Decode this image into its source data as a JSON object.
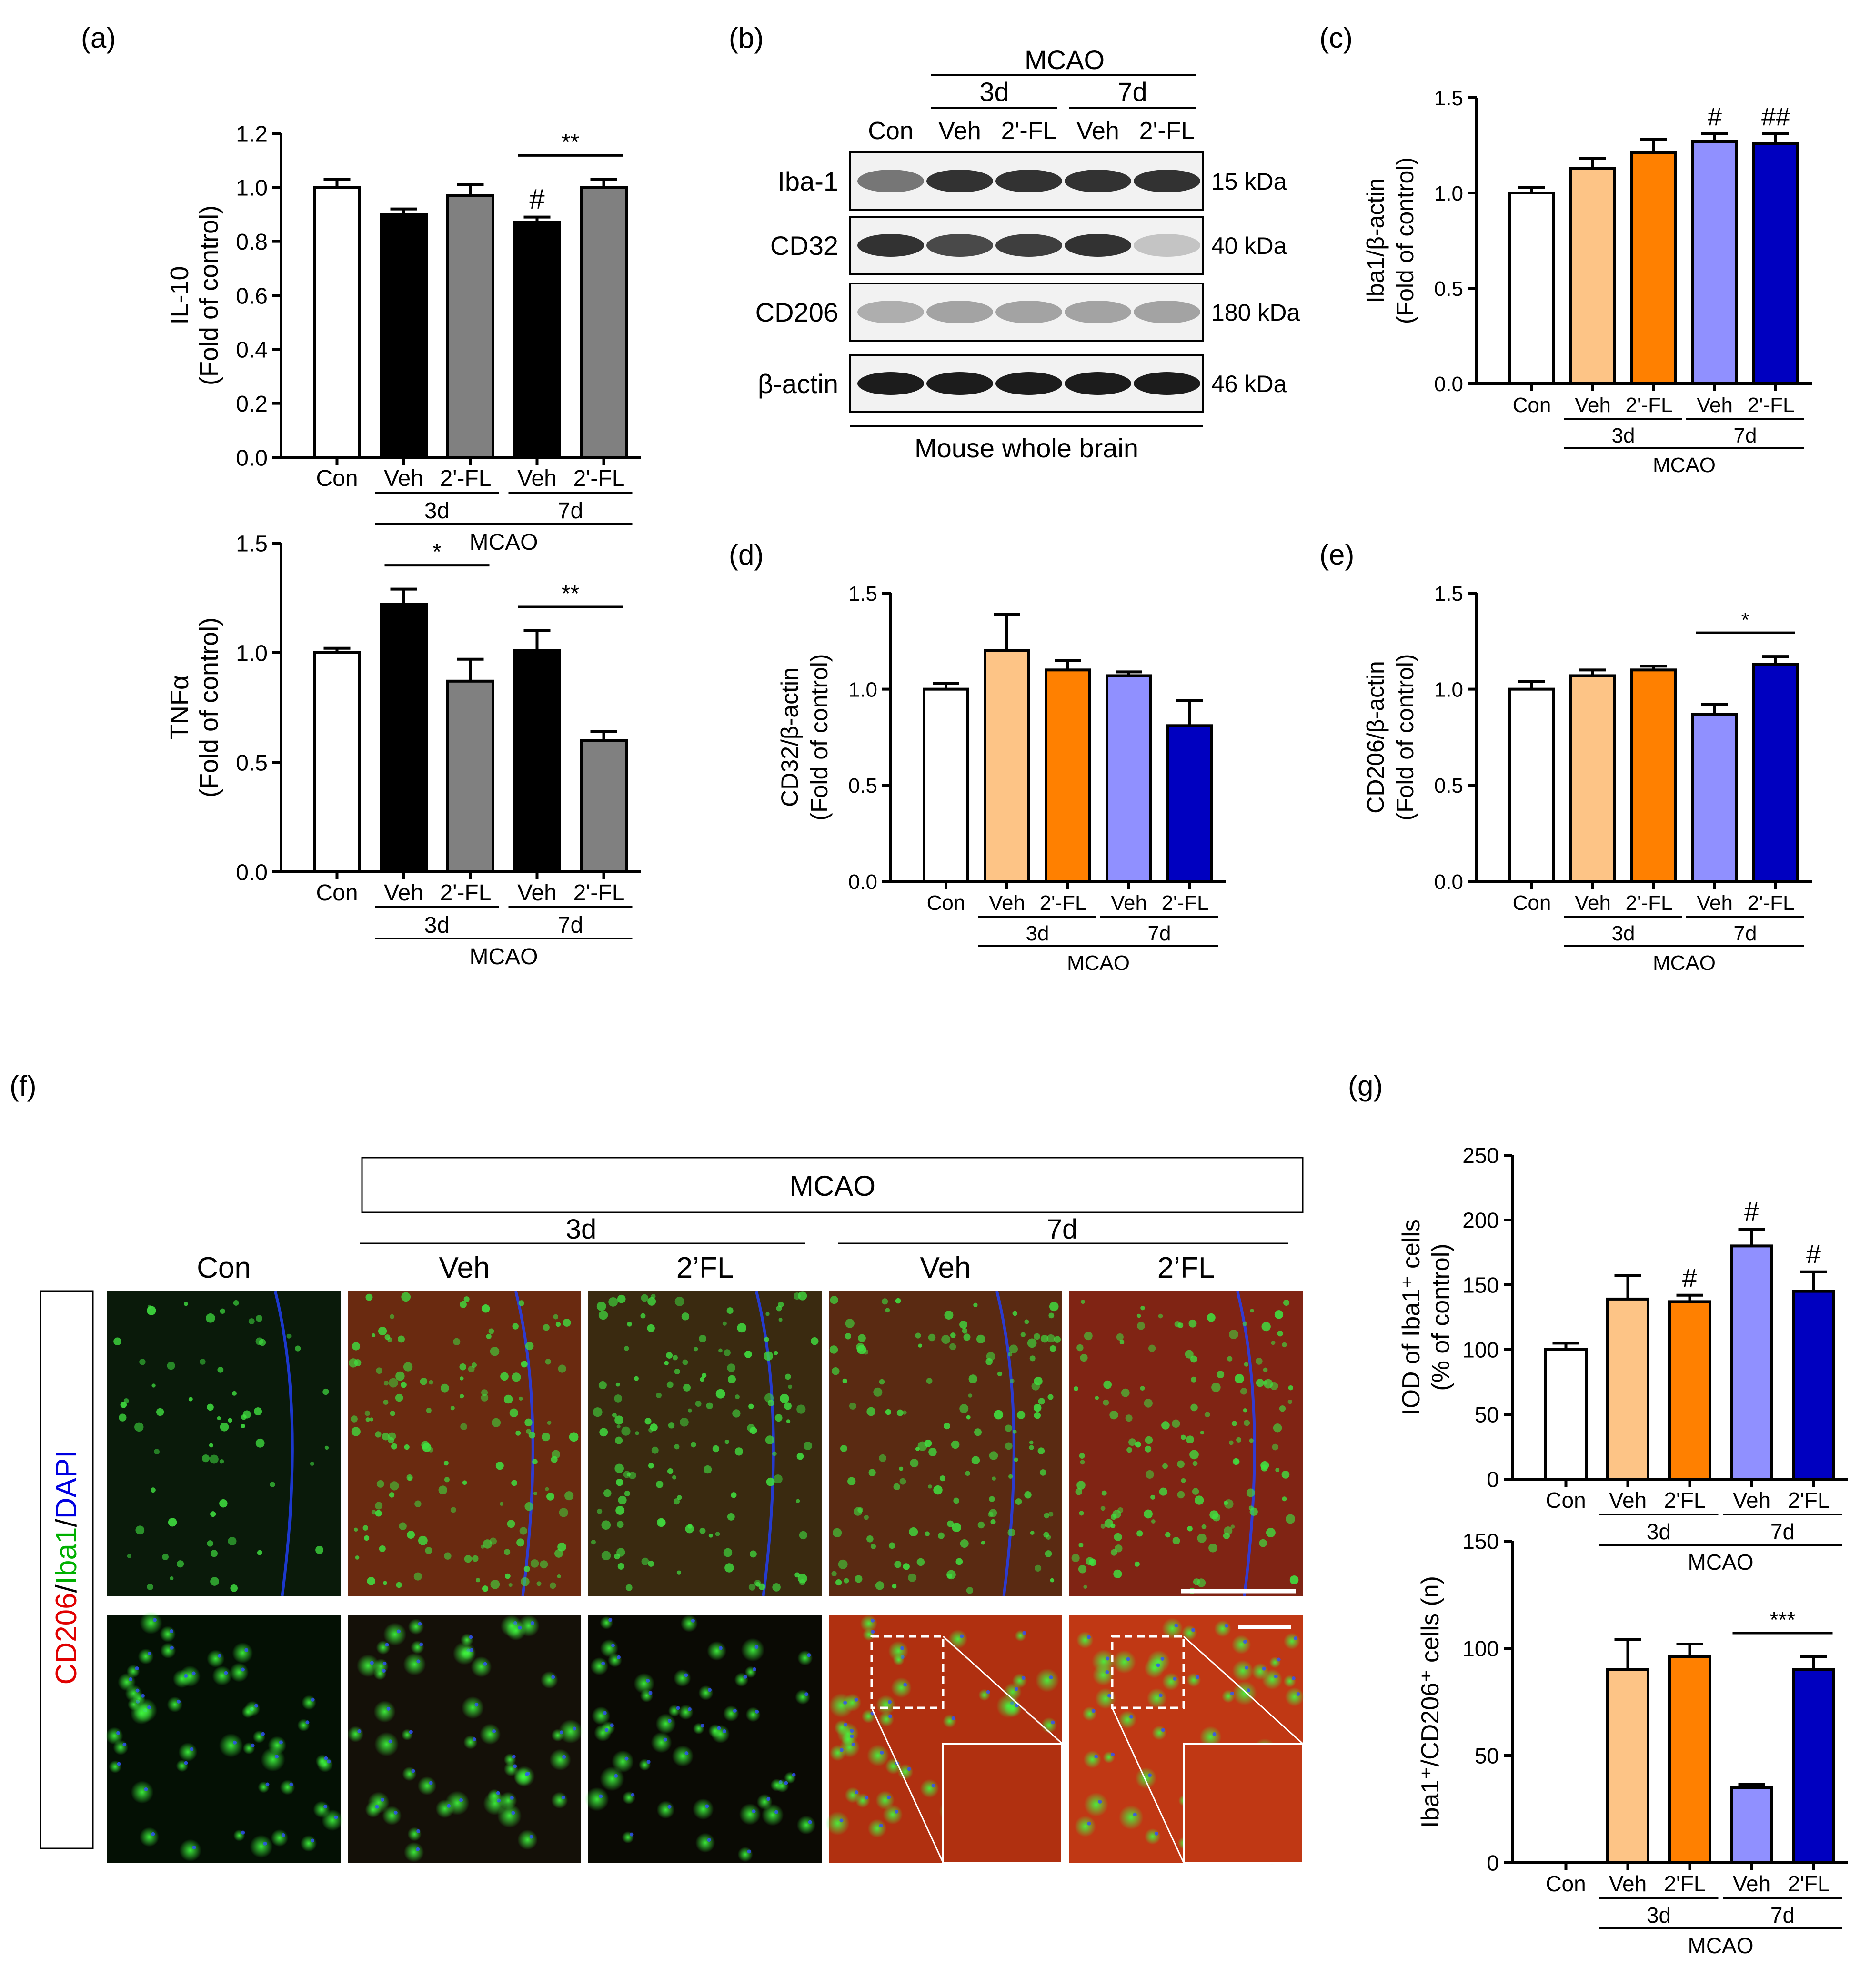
{
  "colors": {
    "con": "#ffffff",
    "black": "#000000",
    "gray": "#808080",
    "veh3": "#fdc486",
    "fl3": "#ff8000",
    "veh7": "#9090ff",
    "fl7": "#0000c0",
    "blot_bg": "#f2f2f2",
    "band": "#101010"
  },
  "panels": {
    "a": "(a)",
    "b": "(b)",
    "c": "(c)",
    "d": "(d)",
    "e": "(e)",
    "f": "(f)",
    "g": "(g)"
  },
  "group_labels": {
    "con": "Con",
    "veh": "Veh",
    "fl": "2'-FL",
    "fl_g": "2'FL",
    "d3": "3d",
    "d7": "7d",
    "mcao": "MCAO"
  },
  "chart_data": [
    {
      "id": "a_il10",
      "type": "bar",
      "categories": [
        "Con",
        "Veh 3d",
        "2'-FL 3d",
        "Veh 7d",
        "2'-FL 7d"
      ],
      "values": [
        1.0,
        0.9,
        0.97,
        0.87,
        1.0
      ],
      "errors": [
        0.03,
        0.02,
        0.04,
        0.02,
        0.03
      ],
      "bar_colors": [
        "#ffffff",
        "#000000",
        "#808080",
        "#000000",
        "#808080"
      ],
      "ylabel": "IL-10",
      "ylabel2": "(Fold of control)",
      "ylim": [
        0,
        1.2
      ],
      "yticks": [
        "0.0",
        "0.2",
        "0.4",
        "0.6",
        "0.8",
        "1.0",
        "1.2"
      ],
      "annotations": [
        {
          "bar": 3,
          "text": "#"
        }
      ],
      "brackets": [
        {
          "from": 3,
          "to": 4,
          "text": "**"
        }
      ]
    },
    {
      "id": "a_tnf",
      "type": "bar",
      "categories": [
        "Con",
        "Veh 3d",
        "2'-FL 3d",
        "Veh 7d",
        "2'-FL 7d"
      ],
      "values": [
        1.0,
        1.22,
        0.87,
        1.01,
        0.6
      ],
      "errors": [
        0.02,
        0.07,
        0.1,
        0.09,
        0.04
      ],
      "bar_colors": [
        "#ffffff",
        "#000000",
        "#808080",
        "#000000",
        "#808080"
      ],
      "ylabel": "TNFα",
      "ylabel2": "(Fold of control)",
      "ylim": [
        0,
        1.5
      ],
      "yticks": [
        "0.0",
        "0.5",
        "1.0",
        "1.5"
      ],
      "annotations": [],
      "brackets": [
        {
          "from": 1,
          "to": 2,
          "text": "*"
        },
        {
          "from": 3,
          "to": 4,
          "text": "**"
        }
      ]
    },
    {
      "id": "c_iba1",
      "type": "bar",
      "categories": [
        "Con",
        "Veh 3d",
        "2'-FL 3d",
        "Veh 7d",
        "2'-FL 7d"
      ],
      "values": [
        1.0,
        1.13,
        1.21,
        1.27,
        1.26
      ],
      "errors": [
        0.03,
        0.05,
        0.07,
        0.04,
        0.05
      ],
      "bar_colors": [
        "#ffffff",
        "#fdc486",
        "#ff8000",
        "#9090ff",
        "#0000c0"
      ],
      "ylabel": "Iba1/β-actin",
      "ylabel2": "(Fold of control)",
      "ylim": [
        0,
        1.5
      ],
      "yticks": [
        "0.0",
        "0.5",
        "1.0",
        "1.5"
      ],
      "annotations": [
        {
          "bar": 3,
          "text": "#"
        },
        {
          "bar": 4,
          "text": "##"
        }
      ],
      "brackets": []
    },
    {
      "id": "d_cd32",
      "type": "bar",
      "categories": [
        "Con",
        "Veh 3d",
        "2'-FL 3d",
        "Veh 7d",
        "2'-FL 7d"
      ],
      "values": [
        1.0,
        1.2,
        1.1,
        1.07,
        0.81
      ],
      "errors": [
        0.03,
        0.19,
        0.05,
        0.02,
        0.13
      ],
      "bar_colors": [
        "#ffffff",
        "#fdc486",
        "#ff8000",
        "#9090ff",
        "#0000c0"
      ],
      "ylabel": "CD32/β-actin",
      "ylabel2": "(Fold of control)",
      "ylim": [
        0,
        1.5
      ],
      "yticks": [
        "0.0",
        "0.5",
        "1.0",
        "1.5"
      ],
      "annotations": [],
      "brackets": []
    },
    {
      "id": "e_cd206",
      "type": "bar",
      "categories": [
        "Con",
        "Veh 3d",
        "2'-FL 3d",
        "Veh 7d",
        "2'-FL 7d"
      ],
      "values": [
        1.0,
        1.07,
        1.1,
        0.87,
        1.13
      ],
      "errors": [
        0.04,
        0.03,
        0.02,
        0.05,
        0.04
      ],
      "bar_colors": [
        "#ffffff",
        "#fdc486",
        "#ff8000",
        "#9090ff",
        "#0000c0"
      ],
      "ylabel": "CD206/β-actin",
      "ylabel2": "(Fold of control)",
      "ylim": [
        0,
        1.5
      ],
      "yticks": [
        "0.0",
        "0.5",
        "1.0",
        "1.5"
      ],
      "annotations": [],
      "brackets": [
        {
          "from": 3,
          "to": 4,
          "text": "*"
        }
      ]
    },
    {
      "id": "g_iod",
      "type": "bar",
      "categories": [
        "Con",
        "Veh 3d",
        "2'FL 3d",
        "Veh 7d",
        "2'FL 7d"
      ],
      "values": [
        100,
        139,
        137,
        180,
        145
      ],
      "errors": [
        5,
        18,
        5,
        13,
        15
      ],
      "bar_colors": [
        "#ffffff",
        "#fdc486",
        "#ff8000",
        "#9090ff",
        "#0000c0"
      ],
      "ylabel": "IOD of Iba1⁺ cells",
      "ylabel2": "(% of control)",
      "ylim": [
        0,
        250
      ],
      "yticks": [
        "0",
        "50",
        "100",
        "150",
        "200",
        "250"
      ],
      "annotations": [
        {
          "bar": 2,
          "text": "#"
        },
        {
          "bar": 3,
          "text": "#"
        },
        {
          "bar": 4,
          "text": "#"
        }
      ],
      "brackets": []
    },
    {
      "id": "g_cells",
      "type": "bar",
      "categories": [
        "Con",
        "Veh 3d",
        "2'FL 3d",
        "Veh 7d",
        "2'FL 7d"
      ],
      "values": [
        0,
        90,
        96,
        35,
        90
      ],
      "errors": [
        0,
        14,
        6,
        1.5,
        6
      ],
      "bar_colors": [
        "#ffffff",
        "#fdc486",
        "#ff8000",
        "#9090ff",
        "#0000c0"
      ],
      "ylabel": "Iba1⁺/CD206⁺ cells (n)",
      "ylabel2": "",
      "ylim": [
        0,
        150
      ],
      "yticks": [
        "0",
        "50",
        "100",
        "150"
      ],
      "annotations": [],
      "brackets": [
        {
          "from": 3,
          "to": 4,
          "text": "***"
        }
      ]
    }
  ],
  "blot": {
    "header_mcao": "MCAO",
    "header_3d": "3d",
    "header_7d": "7d",
    "columns": [
      "Con",
      "Veh",
      "2'-FL",
      "Veh",
      "2'-FL"
    ],
    "rows": [
      {
        "label": "Iba-1",
        "kda": "15 kDa",
        "intensity": [
          0.55,
          0.85,
          0.85,
          0.85,
          0.85
        ]
      },
      {
        "label": "CD32",
        "kda": "40 kDa",
        "intensity": [
          0.85,
          0.75,
          0.8,
          0.85,
          0.2
        ]
      },
      {
        "label": "CD206",
        "kda": "180 kDa",
        "intensity": [
          0.3,
          0.35,
          0.35,
          0.35,
          0.35
        ]
      },
      {
        "label": "β-actin",
        "kda": "46 kDa",
        "intensity": [
          0.95,
          0.95,
          0.95,
          0.95,
          0.95
        ]
      }
    ],
    "footer": "Mouse whole brain"
  },
  "micro": {
    "mcao": "MCAO",
    "d3": "3d",
    "d7": "7d",
    "columns": [
      "Con",
      "Veh",
      "2’FL",
      "Veh",
      "2’FL"
    ],
    "stain_red": "CD206",
    "stain_green": "Iba1",
    "stain_blue": "DAPI",
    "slash": "/"
  }
}
